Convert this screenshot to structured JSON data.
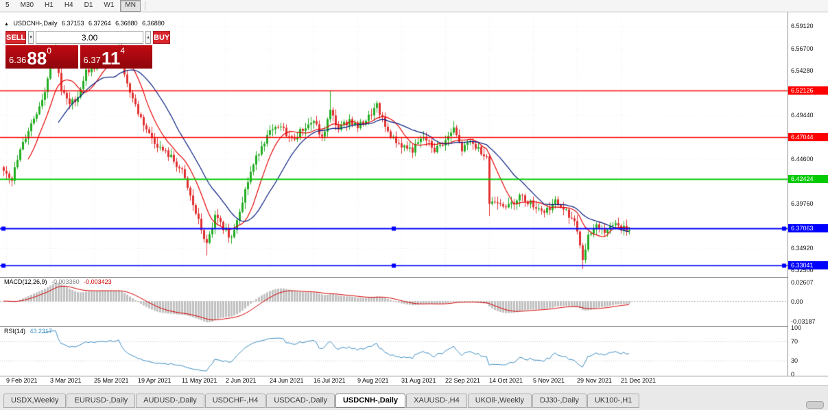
{
  "toolbar": {
    "timeframes": [
      {
        "label": "5",
        "active": false
      },
      {
        "label": "M30",
        "active": false
      },
      {
        "label": "H1",
        "active": false
      },
      {
        "label": "H4",
        "active": false
      },
      {
        "label": "D1",
        "active": false
      },
      {
        "label": "W1",
        "active": false
      },
      {
        "label": "MN",
        "active": true
      }
    ]
  },
  "header": {
    "expander_icon": "▲",
    "title": "USDCNH-,Daily",
    "open": "6.37153",
    "high": "6.37264",
    "low": "6.36880",
    "close": "6.36880"
  },
  "trade_panel": {
    "sell_label": "SELL",
    "buy_label": "BUY",
    "volume": "3.00",
    "spin_down_icon": "▼",
    "spin_up_icon": "▲",
    "bid_prefix": "6.36",
    "bid_big": "88",
    "bid_sup": "0",
    "ask_prefix": "6.37",
    "ask_big": "11",
    "ask_sup": "4",
    "button_color": "#d8262c",
    "price_box_color": "#a6070f"
  },
  "price_axis": {
    "plain_labels": [
      "6.59120",
      "6.56700",
      "6.54280",
      "6.49440",
      "6.44600",
      "6.39760",
      "6.34920",
      "6.32500"
    ]
  },
  "macd_panel": {
    "title": "MACD(12,26,9)",
    "main_value": "-0.003360",
    "signal_value": "-0.003423",
    "axis_top": "0.02607",
    "axis_zero": "0.00",
    "axis_bottom": "-0.03187",
    "histogram_color": "#c0c0c0",
    "signal_color": "#d40000"
  },
  "rsi_panel": {
    "title": "RSI(14)",
    "value": "43.2317",
    "axis_labels": [
      "100",
      "70",
      "30",
      "0"
    ],
    "levels": [
      70,
      30
    ],
    "line_color": "#3e8ec4"
  },
  "tabs": [
    {
      "label": "USDX,Weekly",
      "active": false
    },
    {
      "label": "EURUSD-,Daily",
      "active": false
    },
    {
      "label": "AUDUSD-,Daily",
      "active": false
    },
    {
      "label": "USDCHF-,H4",
      "active": false
    },
    {
      "label": "USDCAD-,Daily",
      "active": false
    },
    {
      "label": "USDCNH-,Daily",
      "active": true
    },
    {
      "label": "XAUUSD-,H4",
      "active": false
    },
    {
      "label": "UKOil-,Weekly",
      "active": false
    },
    {
      "label": "DJ30-,Daily",
      "active": false
    },
    {
      "label": "UK100-,H1",
      "active": false
    }
  ],
  "chart_data": {
    "type": "candlestick",
    "symbol": "USDCNH-",
    "timeframe": "Daily",
    "last": {
      "open": 6.37153,
      "high": 6.37264,
      "low": 6.3688,
      "close": 6.3688
    },
    "price_range_top": 6.6035,
    "price_range_bottom": 6.319,
    "up_color": "#22ad22",
    "down_color": "#e03030",
    "n_bars": 229,
    "x_ticks": [
      "9 Feb 2021",
      "3 Mar 2021",
      "25 Mar 2021",
      "19 Apr 2021",
      "11 May 2021",
      "2 Jun 2021",
      "24 Jun 2021",
      "16 Jul 2021",
      "9 Aug 2021",
      "31 Aug 2021",
      "22 Sep 2021",
      "14 Oct 2021",
      "5 Nov 2021",
      "29 Nov 2021",
      "21 Dec 2021"
    ],
    "closes_anchors": [
      [
        0,
        6.435
      ],
      [
        3,
        6.425
      ],
      [
        6,
        6.455
      ],
      [
        9,
        6.478
      ],
      [
        12,
        6.498
      ],
      [
        15,
        6.52
      ],
      [
        17,
        6.552
      ],
      [
        19,
        6.563
      ],
      [
        21,
        6.522
      ],
      [
        24,
        6.505
      ],
      [
        27,
        6.515
      ],
      [
        30,
        6.542
      ],
      [
        34,
        6.548
      ],
      [
        38,
        6.556
      ],
      [
        42,
        6.568
      ],
      [
        45,
        6.528
      ],
      [
        49,
        6.497
      ],
      [
        53,
        6.473
      ],
      [
        57,
        6.458
      ],
      [
        61,
        6.448
      ],
      [
        65,
        6.432
      ],
      [
        68,
        6.405
      ],
      [
        71,
        6.378
      ],
      [
        74,
        6.352
      ],
      [
        77,
        6.383
      ],
      [
        80,
        6.372
      ],
      [
        83,
        6.36
      ],
      [
        86,
        6.392
      ],
      [
        90,
        6.432
      ],
      [
        94,
        6.462
      ],
      [
        97,
        6.475
      ],
      [
        101,
        6.481
      ],
      [
        105,
        6.467
      ],
      [
        109,
        6.479
      ],
      [
        113,
        6.488
      ],
      [
        116,
        6.468
      ],
      [
        119,
        6.498
      ],
      [
        122,
        6.479
      ],
      [
        126,
        6.489
      ],
      [
        129,
        6.481
      ],
      [
        133,
        6.492
      ],
      [
        136,
        6.504
      ],
      [
        139,
        6.481
      ],
      [
        142,
        6.468
      ],
      [
        145,
        6.461
      ],
      [
        149,
        6.456
      ],
      [
        153,
        6.47
      ],
      [
        157,
        6.456
      ],
      [
        161,
        6.466
      ],
      [
        164,
        6.479
      ],
      [
        167,
        6.456
      ],
      [
        170,
        6.465
      ],
      [
        173,
        6.457
      ],
      [
        176,
        6.45
      ],
      [
        177,
        6.398
      ],
      [
        180,
        6.401
      ],
      [
        184,
        6.394
      ],
      [
        188,
        6.406
      ],
      [
        193,
        6.396
      ],
      [
        197,
        6.389
      ],
      [
        201,
        6.399
      ],
      [
        205,
        6.389
      ],
      [
        208,
        6.379
      ],
      [
        210,
        6.355
      ],
      [
        211,
        6.336
      ],
      [
        213,
        6.362
      ],
      [
        216,
        6.374
      ],
      [
        219,
        6.369
      ],
      [
        222,
        6.377
      ],
      [
        225,
        6.371
      ],
      [
        228,
        6.3688
      ]
    ],
    "wicks": [
      {
        "i": 19,
        "high": 6.578
      },
      {
        "i": 42,
        "high": 6.576
      },
      {
        "i": 74,
        "low": 6.341
      },
      {
        "i": 119,
        "high": 6.521
      },
      {
        "i": 177,
        "low": 6.384
      },
      {
        "i": 211,
        "low": 6.3265
      }
    ],
    "moving_averages": [
      {
        "type": "sma",
        "period": 10,
        "color": "#e60000"
      },
      {
        "type": "sma",
        "period": 21,
        "color": "#001a80"
      }
    ],
    "hlines": [
      {
        "price": 6.52126,
        "color": "#ff0000",
        "lw": 1.5,
        "selected": false
      },
      {
        "price": 6.47044,
        "color": "#ff0000",
        "lw": 1.5,
        "selected": false
      },
      {
        "price": 6.42424,
        "color": "#00ca00",
        "lw": 2,
        "selected": false
      },
      {
        "price": 6.37063,
        "color": "#0000ff",
        "lw": 2,
        "selected": true
      },
      {
        "price": 6.33041,
        "color": "#0000ff",
        "lw": 1.5,
        "selected": true
      }
    ],
    "indicators": [
      {
        "name": "MACD",
        "params": [
          12,
          26,
          9
        ],
        "main": -0.00336,
        "signal": -0.003423
      },
      {
        "name": "RSI",
        "params": [
          14
        ],
        "value": 43.2317
      }
    ]
  }
}
